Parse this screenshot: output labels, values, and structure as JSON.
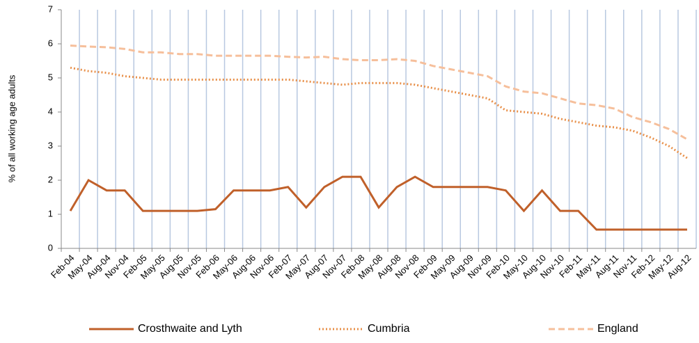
{
  "chart_data": {
    "type": "line",
    "ylabel": "% of all working age adults",
    "categories": [
      "Feb-04",
      "May-04",
      "Aug-04",
      "Nov-04",
      "Feb-05",
      "May-05",
      "Aug-05",
      "Nov-05",
      "Feb-06",
      "May-06",
      "Aug-06",
      "Nov-06",
      "Feb-07",
      "May-07",
      "Aug-07",
      "Nov-07",
      "Feb-08",
      "May-08",
      "Aug-08",
      "Nov-08",
      "Feb-09",
      "May-09",
      "Aug-09",
      "Nov-09",
      "Feb-10",
      "May-10",
      "Aug-10",
      "Nov-10",
      "Feb-11",
      "May-11",
      "Aug-11",
      "Nov-11",
      "Feb-12",
      "May-12",
      "Aug-12"
    ],
    "series": [
      {
        "name": "Crosthwaite and Lyth",
        "color": "#c0602a",
        "style": "solid",
        "values": [
          1.1,
          2.0,
          1.7,
          1.7,
          1.1,
          1.1,
          1.1,
          1.1,
          1.15,
          1.7,
          1.7,
          1.7,
          1.8,
          1.2,
          1.8,
          2.1,
          2.1,
          1.2,
          1.8,
          2.1,
          1.8,
          1.8,
          1.8,
          1.8,
          1.7,
          1.1,
          1.7,
          1.1,
          1.1,
          0.55,
          0.55,
          0.55,
          0.55,
          0.55,
          0.55
        ]
      },
      {
        "name": "Cumbria",
        "color": "#e8904a",
        "style": "dotted",
        "values": [
          5.3,
          5.2,
          5.15,
          5.05,
          5.0,
          4.95,
          4.95,
          4.95,
          4.95,
          4.95,
          4.95,
          4.95,
          4.95,
          4.9,
          4.85,
          4.8,
          4.85,
          4.85,
          4.85,
          4.8,
          4.7,
          4.6,
          4.5,
          4.4,
          4.05,
          4.0,
          3.95,
          3.8,
          3.7,
          3.6,
          3.55,
          3.45,
          3.25,
          3.0,
          2.65
        ]
      },
      {
        "name": "England",
        "color": "#f6bf9b",
        "style": "dashed",
        "values": [
          5.95,
          5.92,
          5.9,
          5.85,
          5.75,
          5.75,
          5.7,
          5.7,
          5.65,
          5.65,
          5.65,
          5.65,
          5.62,
          5.6,
          5.62,
          5.55,
          5.52,
          5.52,
          5.55,
          5.5,
          5.35,
          5.25,
          5.15,
          5.05,
          4.75,
          4.6,
          4.55,
          4.4,
          4.25,
          4.2,
          4.1,
          3.85,
          3.7,
          3.5,
          3.2
        ]
      }
    ],
    "ylim": [
      0,
      7
    ],
    "yticks": [
      0,
      1,
      2,
      3,
      4,
      5,
      6,
      7
    ],
    "grid": true,
    "legend": "bottom"
  }
}
